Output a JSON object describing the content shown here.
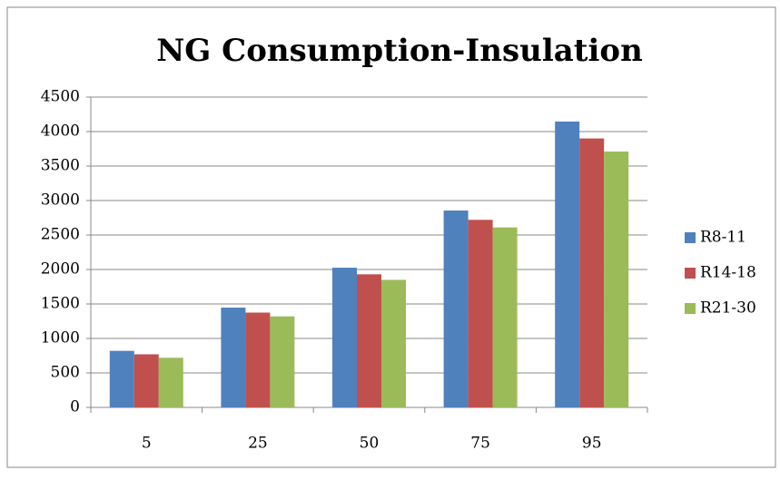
{
  "chart_data": {
    "type": "bar",
    "title": "NG Consumption-Insulation",
    "categories": [
      "5",
      "25",
      "50",
      "75",
      "95"
    ],
    "series": [
      {
        "name": "R8-11",
        "color": "#4f81bd",
        "values": [
          820,
          1447,
          2026,
          2855,
          4145
        ]
      },
      {
        "name": "R14-18",
        "color": "#c0504d",
        "values": [
          770,
          1375,
          1930,
          2720,
          3900
        ]
      },
      {
        "name": "R21-30",
        "color": "#9bbb59",
        "values": [
          720,
          1320,
          1850,
          2610,
          3710
        ]
      }
    ],
    "ylim": [
      0,
      4500
    ],
    "yticks": [
      0,
      500,
      1000,
      1500,
      2000,
      2500,
      3000,
      3500,
      4000,
      4500
    ],
    "grid": true,
    "legend": "right"
  }
}
